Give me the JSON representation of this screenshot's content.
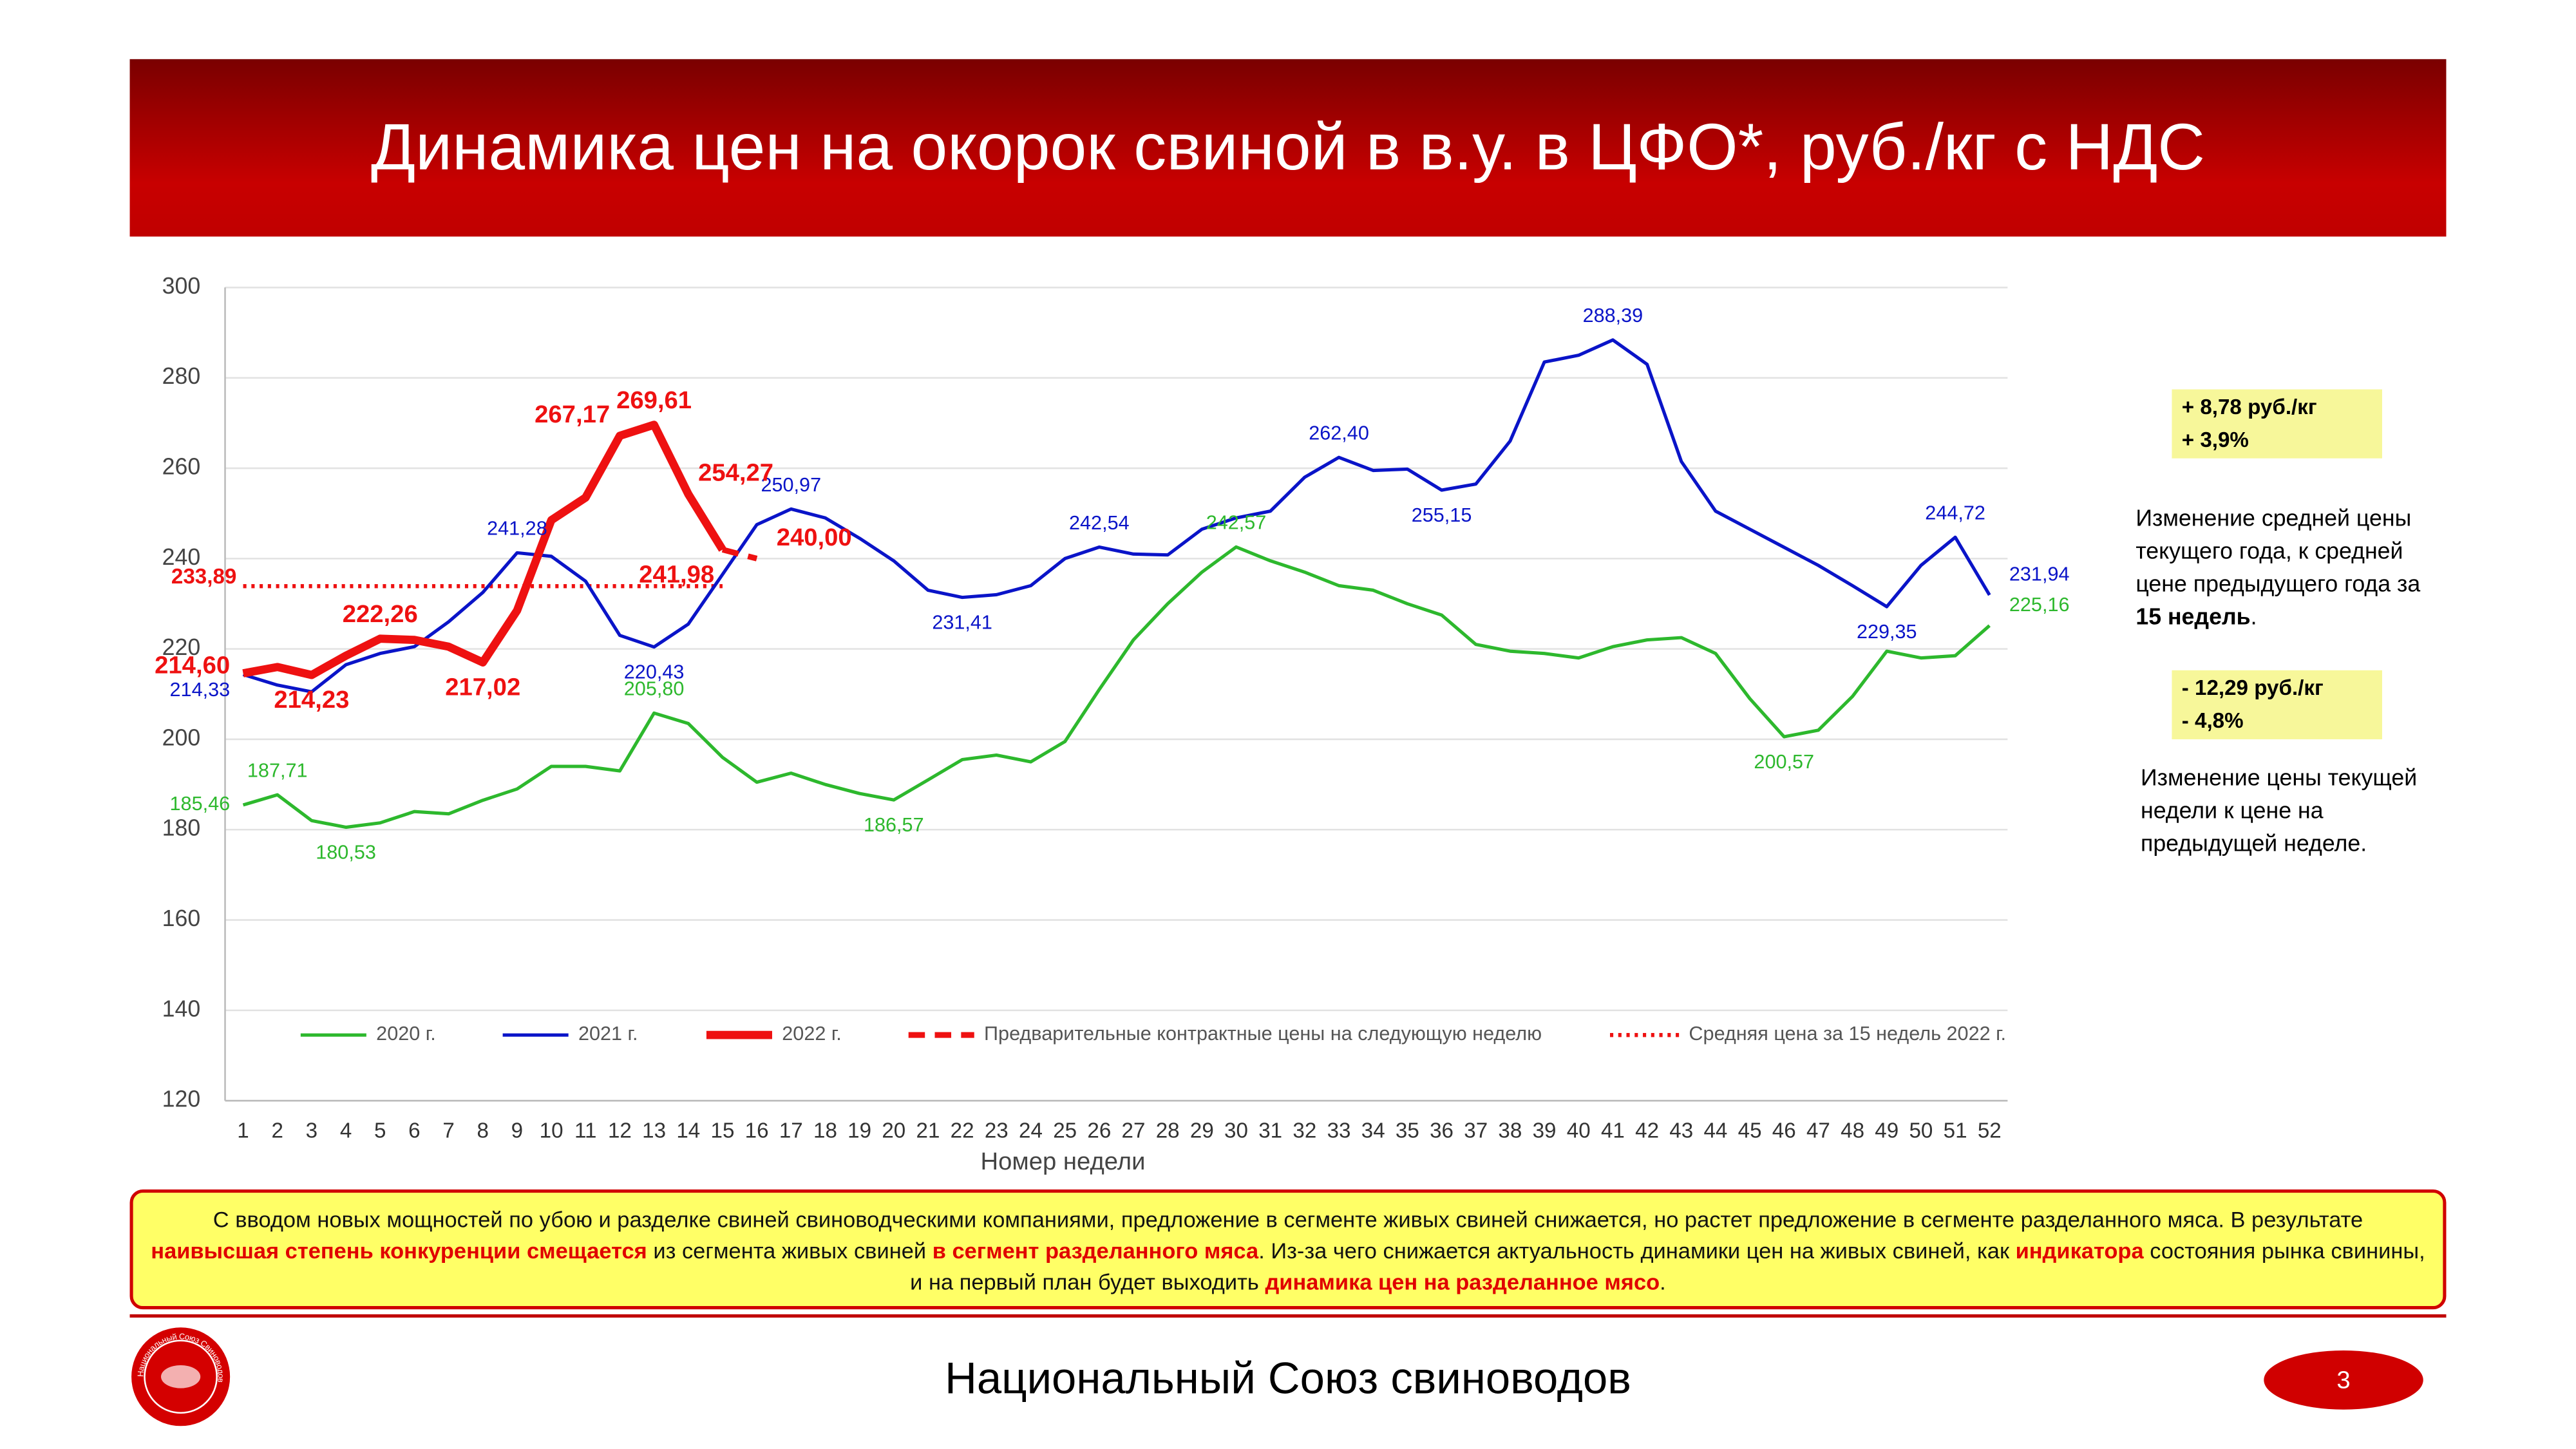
{
  "header": {
    "title": "Динамика цен на окорок свиной в в.у. в ЦФО*, руб./кг с НДС"
  },
  "chart_data": {
    "type": "line",
    "xlabel": "Номер недели",
    "categories": [
      1,
      2,
      3,
      4,
      5,
      6,
      7,
      8,
      9,
      10,
      11,
      12,
      13,
      14,
      15,
      16,
      17,
      18,
      19,
      20,
      21,
      22,
      23,
      24,
      25,
      26,
      27,
      28,
      29,
      30,
      31,
      32,
      33,
      34,
      35,
      36,
      37,
      38,
      39,
      40,
      41,
      42,
      43,
      44,
      45,
      46,
      47,
      48,
      49,
      50,
      51,
      52
    ],
    "ylim": [
      120,
      300
    ],
    "yticks": [
      120,
      140,
      160,
      180,
      200,
      220,
      240,
      260,
      280,
      300
    ],
    "grid": true,
    "series": [
      {
        "name": "2020 г.",
        "color": "#2db82d",
        "values": [
          185.46,
          187.71,
          182,
          180.53,
          181.5,
          184,
          183.5,
          186.5,
          189,
          194,
          194,
          193,
          205.8,
          203.5,
          196,
          190.5,
          192.5,
          190,
          188,
          186.57,
          191,
          195.5,
          196.5,
          195,
          199.5,
          211,
          222,
          230,
          237,
          242.57,
          239.5,
          237,
          234,
          233,
          230,
          227.5,
          221,
          219.5,
          219,
          218,
          220.5,
          222,
          222.5,
          219,
          209,
          200.57,
          202,
          209.5,
          219.5,
          218,
          218.5,
          225.16
        ],
        "value_labels": [
          "185,46",
          "187,71",
          null,
          "180,53",
          null,
          null,
          null,
          null,
          null,
          null,
          null,
          null,
          "205,80",
          null,
          null,
          null,
          null,
          null,
          null,
          "186,57",
          null,
          null,
          null,
          null,
          null,
          null,
          null,
          null,
          null,
          "242,57",
          null,
          null,
          null,
          null,
          null,
          null,
          null,
          null,
          null,
          null,
          null,
          null,
          null,
          null,
          null,
          "200,57",
          null,
          null,
          null,
          null,
          null,
          "225,16"
        ]
      },
      {
        "name": "2021 г.",
        "color": "#0a14c8",
        "values": [
          214.33,
          212,
          210.5,
          216.5,
          219,
          220.5,
          226,
          232.5,
          241.28,
          240.5,
          235,
          223,
          220.43,
          225.5,
          236.5,
          247.5,
          250.97,
          249,
          244.5,
          239.5,
          233,
          231.41,
          232,
          234,
          240,
          242.54,
          241,
          240.8,
          246.5,
          249,
          250.5,
          258,
          262.4,
          259.5,
          259.8,
          255.15,
          256.5,
          266,
          283.5,
          285,
          288.39,
          283,
          261.5,
          250.5,
          246.5,
          242.5,
          238.5,
          234,
          229.35,
          238.5,
          244.72,
          231.94
        ],
        "value_labels": [
          "214,33",
          null,
          null,
          null,
          null,
          null,
          null,
          null,
          "241,28",
          null,
          null,
          null,
          "220,43",
          null,
          null,
          null,
          "250,97",
          null,
          null,
          null,
          null,
          "231,41",
          null,
          null,
          null,
          "242,54",
          null,
          null,
          null,
          null,
          null,
          null,
          "262,40",
          null,
          null,
          "255,15",
          null,
          null,
          null,
          null,
          "288,39",
          null,
          null,
          null,
          null,
          null,
          null,
          null,
          "229,35",
          null,
          "244,72",
          "231,94"
        ]
      },
      {
        "name": "2022 г.",
        "color": "#ee1111",
        "values": [
          214.6,
          216,
          214.23,
          218.5,
          222.26,
          222,
          220.5,
          217.02,
          228.5,
          248.5,
          253.5,
          267.17,
          269.61,
          254.27,
          241.98,
          null,
          null,
          null,
          null,
          null,
          null,
          null,
          null,
          null,
          null,
          null,
          null,
          null,
          null,
          null,
          null,
          null,
          null,
          null,
          null,
          null,
          null,
          null,
          null,
          null,
          null,
          null,
          null,
          null,
          null,
          null,
          null,
          null,
          null,
          null,
          null,
          null
        ],
        "value_labels": [
          "214,60",
          null,
          "214,23",
          null,
          "222,26",
          null,
          null,
          "217,02",
          null,
          null,
          null,
          "267,17",
          "269,61",
          "254,27",
          "241,98",
          null,
          null,
          null,
          null,
          null,
          null,
          null,
          null,
          null,
          null,
          null,
          null,
          null,
          null,
          null,
          null,
          null,
          null,
          null,
          null,
          null,
          null,
          null,
          null,
          null,
          null,
          null,
          null,
          null,
          null,
          null,
          null,
          null,
          null,
          null,
          null,
          null
        ]
      },
      {
        "name": "Предварительные контрактные цены на следующую неделю",
        "color": "#ee1111",
        "dashed": true,
        "values": [
          null,
          null,
          null,
          null,
          null,
          null,
          null,
          null,
          null,
          null,
          null,
          null,
          null,
          null,
          241.98,
          240,
          null,
          null,
          null,
          null,
          null,
          null,
          null,
          null,
          null,
          null,
          null,
          null,
          null,
          null,
          null,
          null,
          null,
          null,
          null,
          null,
          null,
          null,
          null,
          null,
          null,
          null,
          null,
          null,
          null,
          null,
          null,
          null,
          null,
          null,
          null,
          null
        ],
        "value_labels": [
          null,
          null,
          null,
          null,
          null,
          null,
          null,
          null,
          null,
          null,
          null,
          null,
          null,
          null,
          null,
          "240,00",
          null,
          null,
          null,
          null,
          null,
          null,
          null,
          null,
          null,
          null,
          null,
          null,
          null,
          null,
          null,
          null,
          null,
          null,
          null,
          null,
          null,
          null,
          null,
          null,
          null,
          null,
          null,
          null,
          null,
          null,
          null,
          null,
          null,
          null,
          null,
          null
        ]
      }
    ],
    "average": {
      "name": "Средняя цена за 15 недель 2022 г.",
      "color": "#ee1111",
      "value": 233.89,
      "value_label": "233,89"
    }
  },
  "side": {
    "box1": [
      "+ 8,78 руб./кг",
      "+ 3,9%"
    ],
    "note1": [
      {
        "text": "Изменение средней цены текущего года, к средней цене предыдущего года за "
      },
      {
        "text": "15 недель",
        "bold": true
      },
      {
        "text": "."
      }
    ],
    "box2": [
      "- 12,29 руб./кг",
      "- 4,8%"
    ],
    "note2": [
      {
        "text": "Изменение цены текущей недели к цене на предыдущей неделе."
      }
    ]
  },
  "footer_box": [
    {
      "text": "С вводом новых мощностей по убою и разделке свиней свиноводческими компаниями, предложение в сегменте живых свиней снижается, но растет предложение в сегменте разделанного мяса.  В результате "
    },
    {
      "text": "наивысшая степень конкуренции смещается",
      "bold": true
    },
    {
      "text": " из сегмента живых свиней "
    },
    {
      "text": "в сегмент разделанного мяса",
      "bold": true
    },
    {
      "text": ". Из-за чего снижается актуальность динамики цен на живых свиней, как "
    },
    {
      "text": "индикатора",
      "bold": true
    },
    {
      "text": " состояния рынка свинины, и на первый план будет выходить "
    },
    {
      "text": "динамика цен на разделанное мясо",
      "bold": true
    },
    {
      "text": "."
    }
  ],
  "footer": {
    "org": "Национальный Союз свиноводов",
    "logo_text": "Национальный Союз Свиноводов",
    "page": "3"
  }
}
